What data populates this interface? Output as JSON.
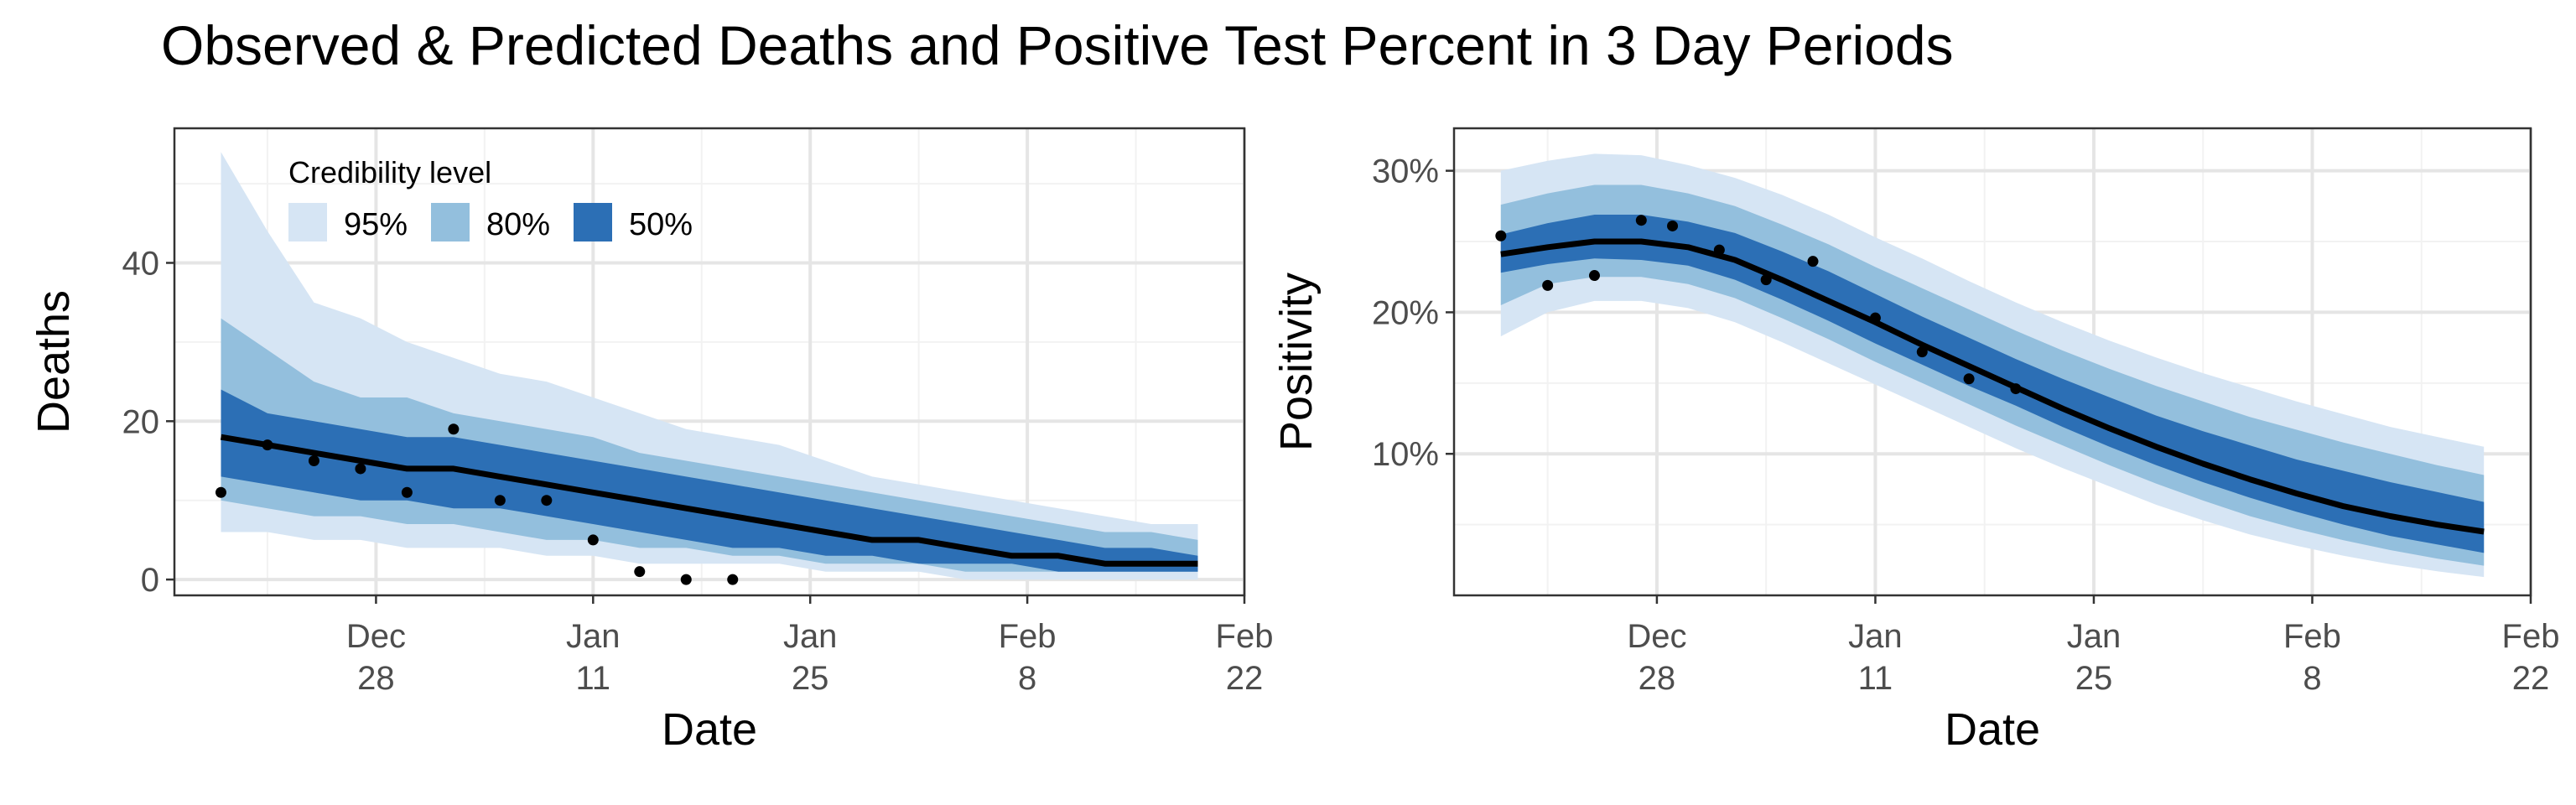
{
  "title": "Observed & Predicted Deaths and Positive Test Percent in 3 Day Periods",
  "legend": {
    "title": "Credibility level",
    "items": [
      {
        "label": "95%",
        "color": "#d6e5f4"
      },
      {
        "label": "80%",
        "color": "#93bfdd"
      },
      {
        "label": "50%",
        "color": "#2c6fb5"
      }
    ]
  },
  "colors": {
    "median": "#000000",
    "points": "#000000",
    "grid_major": "#e5e5e5",
    "grid_minor": "#f2f2f2",
    "axis_text": "#4d4d4d"
  },
  "x_ticks": [
    {
      "day": 8,
      "line1": "Dec",
      "line2": "28"
    },
    {
      "day": 22,
      "line1": "Jan",
      "line2": "11"
    },
    {
      "day": 36,
      "line1": "Jan",
      "line2": "25"
    },
    {
      "day": 50,
      "line1": "Feb",
      "line2": "8"
    },
    {
      "day": 64,
      "line1": "Feb",
      "line2": "22"
    }
  ],
  "chart_data": [
    {
      "type": "area",
      "xlabel": "Date",
      "ylabel": "Deaths",
      "x_start": "2020-12-20",
      "xlim": [
        -5,
        64
      ],
      "ylim": [
        -2,
        57
      ],
      "y_ticks": [
        {
          "v": 0,
          "label": "0"
        },
        {
          "v": 20,
          "label": "20"
        },
        {
          "v": 40,
          "label": "40"
        }
      ],
      "x": [
        -2,
        1,
        4,
        7,
        10,
        13,
        16,
        19,
        22,
        25,
        28,
        31,
        34,
        37,
        40,
        43,
        46,
        49,
        52,
        55,
        58,
        61
      ],
      "median": [
        18,
        17,
        16,
        15,
        14,
        14,
        13,
        12,
        11,
        10,
        9,
        8,
        7,
        6,
        5,
        5,
        4,
        3,
        3,
        2,
        2,
        2
      ],
      "band50": {
        "lower": [
          13,
          12,
          11,
          10,
          10,
          9,
          9,
          8,
          7,
          6,
          5,
          4,
          4,
          3,
          3,
          2,
          2,
          2,
          1,
          1,
          1,
          1
        ],
        "upper": [
          24,
          21,
          20,
          19,
          18,
          18,
          17,
          16,
          15,
          14,
          13,
          12,
          11,
          10,
          9,
          8,
          7,
          6,
          5,
          4,
          4,
          3
        ]
      },
      "band80": {
        "lower": [
          10,
          9,
          8,
          8,
          7,
          7,
          6,
          5,
          5,
          4,
          4,
          3,
          3,
          2,
          2,
          2,
          1,
          1,
          1,
          1,
          1,
          1
        ],
        "upper": [
          33,
          29,
          25,
          23,
          23,
          21,
          20,
          19,
          18,
          16,
          15,
          14,
          13,
          12,
          11,
          10,
          9,
          8,
          7,
          6,
          6,
          5
        ]
      },
      "band95": {
        "lower": [
          6,
          6,
          5,
          5,
          4,
          4,
          4,
          3,
          3,
          2,
          2,
          2,
          2,
          1,
          1,
          1,
          0,
          0,
          0,
          0,
          0,
          0
        ],
        "upper": [
          54,
          44,
          35,
          33,
          30,
          28,
          26,
          25,
          23,
          21,
          19,
          18,
          17,
          15,
          13,
          12,
          11,
          10,
          9,
          8,
          7,
          7
        ]
      },
      "points": {
        "x": [
          -2,
          1,
          4,
          7,
          10,
          13,
          16,
          19,
          22,
          25,
          28,
          31
        ],
        "y": [
          11,
          17,
          15,
          14,
          11,
          19,
          10,
          10,
          5,
          1,
          0,
          0
        ]
      }
    },
    {
      "type": "area",
      "xlabel": "Date",
      "ylabel": "Positivity",
      "x_start": "2020-12-20",
      "xlim": [
        -5,
        64
      ],
      "ylim": [
        0,
        33
      ],
      "y_ticks": [
        {
          "v": 10,
          "label": "10%"
        },
        {
          "v": 20,
          "label": "20%"
        },
        {
          "v": 30,
          "label": "30%"
        }
      ],
      "x": [
        -2,
        1,
        4,
        7,
        10,
        13,
        16,
        19,
        22,
        25,
        28,
        31,
        34,
        37,
        40,
        43,
        46,
        49,
        52,
        55,
        58,
        61
      ],
      "median": [
        24.1,
        24.6,
        25.0,
        25.0,
        24.6,
        23.7,
        22.3,
        20.8,
        19.3,
        17.7,
        16.2,
        14.7,
        13.2,
        11.8,
        10.5,
        9.3,
        8.2,
        7.2,
        6.3,
        5.6,
        5.0,
        4.5
      ],
      "band50": {
        "lower": [
          22.8,
          23.4,
          23.8,
          23.7,
          23.3,
          22.3,
          20.9,
          19.4,
          17.8,
          16.3,
          14.8,
          13.4,
          11.9,
          10.5,
          9.2,
          8.0,
          6.9,
          5.9,
          5.0,
          4.2,
          3.6,
          3.0
        ],
        "upper": [
          25.5,
          26.3,
          26.9,
          26.9,
          26.4,
          25.6,
          24.3,
          22.9,
          21.3,
          19.7,
          18.2,
          16.7,
          15.3,
          14.0,
          12.7,
          11.6,
          10.6,
          9.6,
          8.8,
          8.0,
          7.3,
          6.6
        ]
      },
      "band80": {
        "lower": [
          20.5,
          22.0,
          22.5,
          22.5,
          22.0,
          21.0,
          19.6,
          18.1,
          16.5,
          15.0,
          13.5,
          12.0,
          10.6,
          9.2,
          7.9,
          6.7,
          5.6,
          4.7,
          3.9,
          3.2,
          2.6,
          2.1
        ],
        "upper": [
          27.6,
          28.4,
          29.0,
          29.0,
          28.4,
          27.5,
          26.2,
          24.8,
          23.2,
          21.7,
          20.2,
          18.7,
          17.3,
          16.0,
          14.8,
          13.7,
          12.6,
          11.7,
          10.8,
          10.0,
          9.2,
          8.5
        ]
      },
      "band95": {
        "lower": [
          18.3,
          20.0,
          20.8,
          20.8,
          20.3,
          19.3,
          17.9,
          16.4,
          14.9,
          13.4,
          11.9,
          10.4,
          9.0,
          7.7,
          6.4,
          5.3,
          4.3,
          3.5,
          2.8,
          2.2,
          1.7,
          1.3
        ],
        "upper": [
          30.0,
          30.7,
          31.2,
          31.1,
          30.4,
          29.5,
          28.3,
          26.9,
          25.3,
          23.8,
          22.2,
          20.7,
          19.3,
          18.0,
          16.8,
          15.7,
          14.7,
          13.7,
          12.8,
          11.9,
          11.2,
          10.5
        ]
      },
      "points": {
        "x": [
          -2,
          1,
          4,
          7,
          9,
          12,
          15,
          18,
          22,
          25,
          28,
          31
        ],
        "y": [
          25.4,
          21.9,
          22.6,
          26.5,
          26.1,
          24.4,
          22.3,
          23.6,
          19.6,
          17.2,
          15.3,
          14.6
        ]
      }
    }
  ]
}
